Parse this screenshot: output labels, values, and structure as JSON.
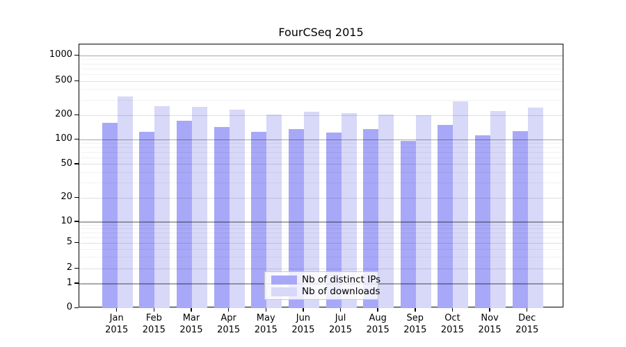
{
  "chart_data": {
    "type": "bar",
    "title": "FourCSeq 2015",
    "categories": [
      "Jan",
      "Feb",
      "Mar",
      "Apr",
      "May",
      "Jun",
      "Jul",
      "Aug",
      "Sep",
      "Oct",
      "Nov",
      "Dec"
    ],
    "category_year": "2015",
    "series": [
      {
        "name": "Nb of distinct IPs",
        "color": "#a8a8f8",
        "values": [
          160,
          124,
          171,
          144,
          126,
          135,
          123,
          136,
          96,
          153,
          113,
          127
        ]
      },
      {
        "name": "Nb of downloads",
        "color": "#d8d8f8",
        "values": [
          330,
          256,
          252,
          234,
          204,
          218,
          212,
          205,
          200,
          291,
          222,
          247
        ]
      }
    ],
    "yscale": "log-like",
    "yticks": [
      0,
      1,
      2,
      5,
      10,
      20,
      50,
      100,
      200,
      500,
      1000
    ],
    "ytick_labels": [
      "0",
      "1",
      "2",
      "5",
      "10",
      "20",
      "50",
      "100",
      "200",
      "500",
      "1000"
    ],
    "ylim": [
      0,
      1300
    ],
    "grid": "horizontal major+minor",
    "legend_position": "inside-bottom-center",
    "colors": {
      "grid_major": "#a9a9a9",
      "grid_mid": "#e0e0e0",
      "grid_minor": "#f1f1f1",
      "axis": "#000000",
      "text": "#000000",
      "legend_border": "#c9c9c9",
      "background": "#ffffff"
    }
  }
}
